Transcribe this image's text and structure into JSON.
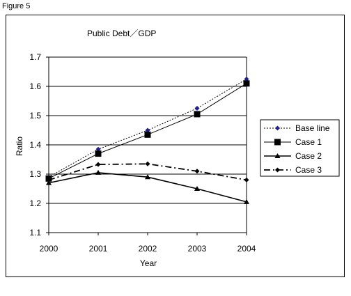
{
  "figure_label": "Figure 5",
  "chart_data": {
    "type": "line",
    "title": "Public Debt／GDP",
    "xlabel": "Year",
    "ylabel": "Ratio",
    "categories": [
      "2000",
      "2001",
      "2002",
      "2003",
      "2004"
    ],
    "ylim": [
      1.1,
      1.7
    ],
    "yticks": [
      "1.1",
      "1.2",
      "1.3",
      "1.4",
      "1.5",
      "1.6",
      "1.7"
    ],
    "grid": true,
    "legend_position": "right",
    "series": [
      {
        "name": "Base line",
        "values": [
          1.29,
          1.385,
          1.45,
          1.525,
          1.625
        ],
        "line": "dotted",
        "marker": "diamond",
        "marker_color": "#1f1f8f"
      },
      {
        "name": "Case 1",
        "values": [
          1.285,
          1.37,
          1.435,
          1.505,
          1.61
        ],
        "line": "solid-thin",
        "marker": "square",
        "marker_color": "#000000"
      },
      {
        "name": "Case 2",
        "values": [
          1.27,
          1.305,
          1.29,
          1.25,
          1.205
        ],
        "line": "solid-thick",
        "marker": "triangle",
        "marker_color": "#000000"
      },
      {
        "name": "Case 3",
        "values": [
          1.28,
          1.333,
          1.335,
          1.31,
          1.28
        ],
        "line": "dashdot",
        "marker": "diamond",
        "marker_color": "#000000"
      }
    ]
  }
}
